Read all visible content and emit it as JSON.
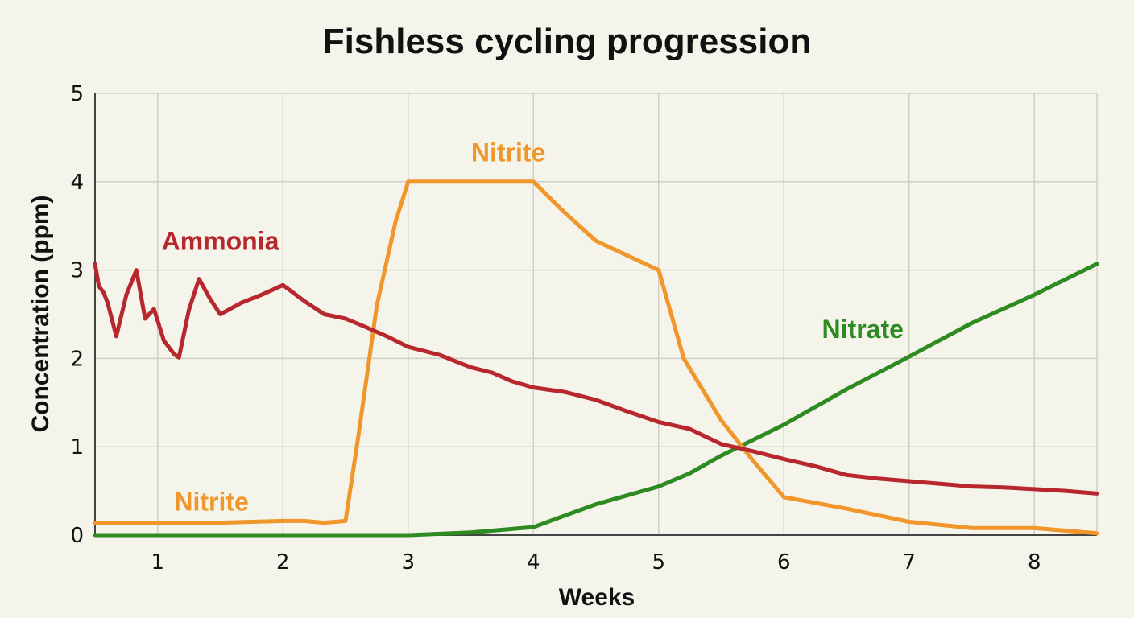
{
  "chart_data": {
    "type": "line",
    "title": "Fishless cycling progression",
    "xlabel": "Weeks",
    "ylabel": "Concentration (ppm)",
    "xlim": [
      0.5,
      8.5
    ],
    "ylim": [
      0,
      5
    ],
    "xticks": [
      1,
      2,
      3,
      4,
      5,
      6,
      7,
      8
    ],
    "yticks": [
      0,
      1,
      2,
      3,
      4,
      5
    ],
    "grid": true,
    "series": [
      {
        "name": "Ammonia",
        "color": "#b8262e",
        "x": [
          0.5,
          0.53,
          0.57,
          0.6,
          0.67,
          0.75,
          0.83,
          0.9,
          0.97,
          1.05,
          1.13,
          1.17,
          1.25,
          1.33,
          1.42,
          1.5,
          1.67,
          1.83,
          2.0,
          2.17,
          2.33,
          2.5,
          2.67,
          2.83,
          3.0,
          3.25,
          3.5,
          3.67,
          3.83,
          4.0,
          4.25,
          4.5,
          4.75,
          5.0,
          5.25,
          5.5,
          5.75,
          6.0,
          6.25,
          6.5,
          6.75,
          7.0,
          7.25,
          7.5,
          7.75,
          8.0,
          8.25,
          8.5
        ],
        "y": [
          3.07,
          2.82,
          2.74,
          2.63,
          2.25,
          2.72,
          3.0,
          2.45,
          2.56,
          2.2,
          2.05,
          2.01,
          2.55,
          2.9,
          2.67,
          2.5,
          2.63,
          2.72,
          2.83,
          2.65,
          2.5,
          2.45,
          2.35,
          2.25,
          2.13,
          2.04,
          1.9,
          1.84,
          1.74,
          1.67,
          1.62,
          1.53,
          1.4,
          1.28,
          1.2,
          1.03,
          0.95,
          0.86,
          0.78,
          0.68,
          0.64,
          0.61,
          0.58,
          0.55,
          0.54,
          0.52,
          0.5,
          0.47
        ]
      },
      {
        "name": "Nitrite",
        "color": "#f0962a",
        "x": [
          0.5,
          1.0,
          1.5,
          2.0,
          2.17,
          2.33,
          2.5,
          2.6,
          2.75,
          2.9,
          3.0,
          3.5,
          4.0,
          4.25,
          4.5,
          5.0,
          5.2,
          5.5,
          5.75,
          6.0,
          6.5,
          7.0,
          7.5,
          8.0,
          8.25,
          8.5
        ],
        "y": [
          0.14,
          0.14,
          0.14,
          0.16,
          0.16,
          0.14,
          0.16,
          1.1,
          2.6,
          3.55,
          4.0,
          4.0,
          4.0,
          3.65,
          3.33,
          3.0,
          2.0,
          1.3,
          0.85,
          0.43,
          0.3,
          0.15,
          0.08,
          0.08,
          0.05,
          0.02
        ]
      },
      {
        "name": "Nitrate",
        "color": "#2e8b22",
        "x": [
          0.5,
          1.0,
          2.0,
          3.0,
          3.5,
          4.0,
          4.25,
          4.5,
          5.0,
          5.25,
          5.5,
          6.0,
          6.5,
          7.0,
          7.5,
          8.0,
          8.5
        ],
        "y": [
          0.0,
          0.0,
          0.0,
          0.0,
          0.03,
          0.09,
          0.22,
          0.35,
          0.55,
          0.7,
          0.9,
          1.25,
          1.65,
          2.02,
          2.4,
          2.72,
          3.07
        ]
      }
    ],
    "annotations": [
      {
        "text": "Ammonia",
        "color": "#b8262e",
        "x": 1.5,
        "y": 3.23
      },
      {
        "text": "Nitrite",
        "color": "#f0962a",
        "x": 3.8,
        "y": 4.23
      },
      {
        "text": "Nitrite",
        "color": "#f0962a",
        "x": 1.43,
        "y": 0.28
      },
      {
        "text": "Nitrate",
        "color": "#2e8b22",
        "x": 6.63,
        "y": 2.23
      }
    ]
  }
}
